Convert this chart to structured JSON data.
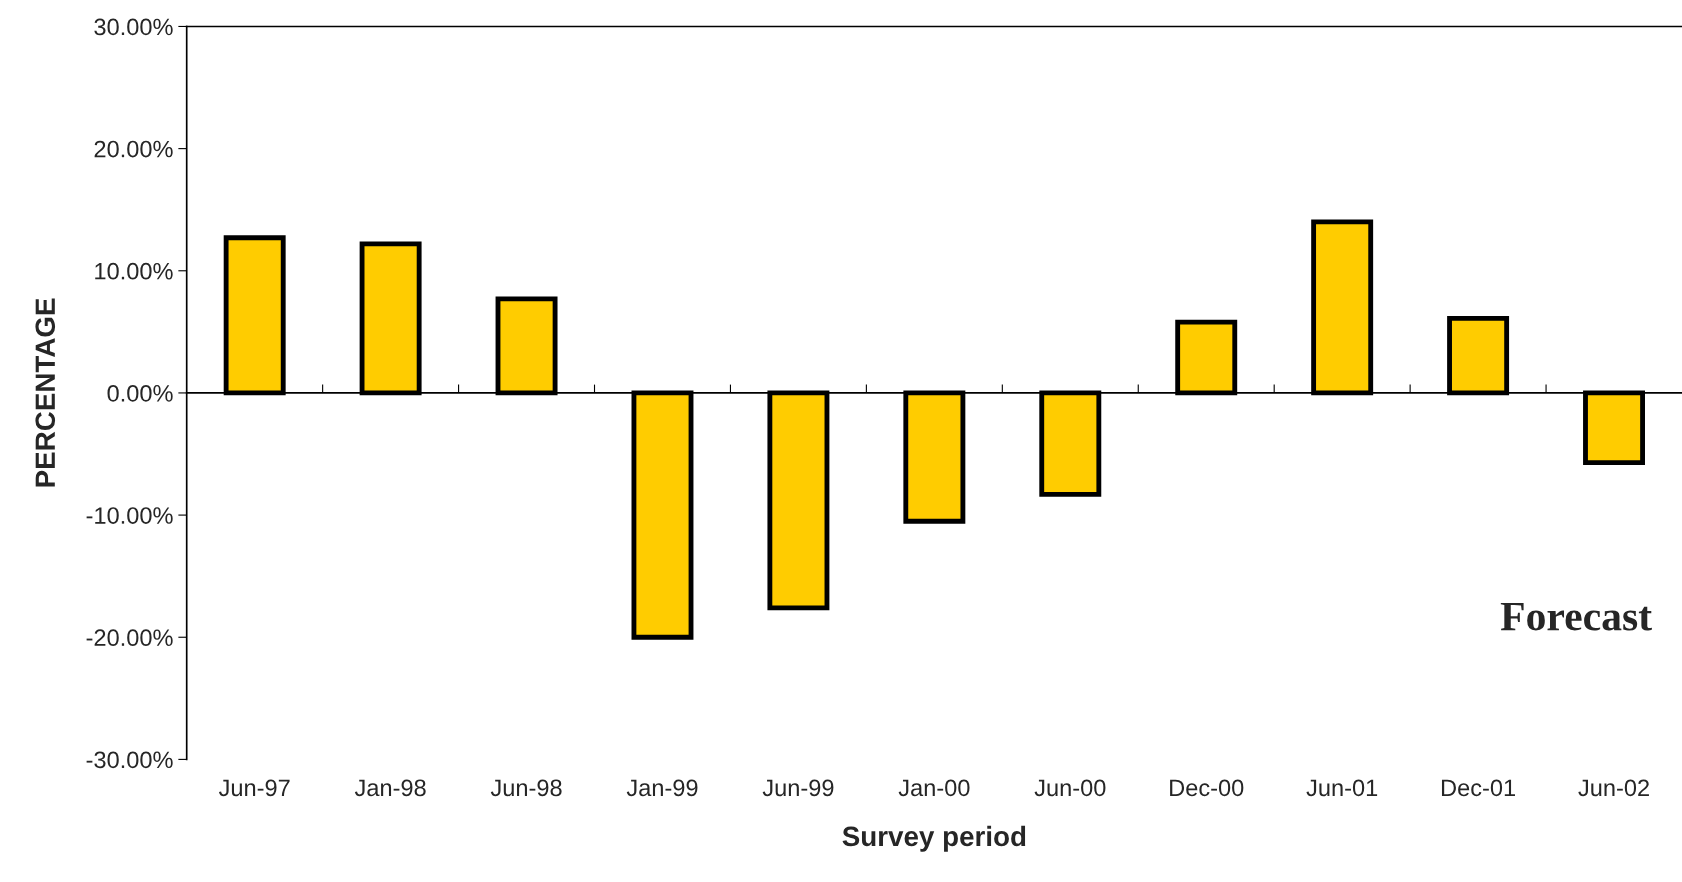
{
  "chart_data": {
    "type": "bar",
    "xlabel": "Survey period",
    "ylabel": "PERCENTAGE",
    "categories": [
      "Jun-97",
      "Jan-98",
      "Jun-98",
      "Jan-99",
      "Jun-99",
      "Jan-00",
      "Jun-00",
      "Dec-00",
      "Jun-01",
      "Dec-01",
      "Jun-02"
    ],
    "values": [
      12.7,
      12.2,
      7.7,
      -20.0,
      -17.6,
      -10.5,
      -8.3,
      5.8,
      14.0,
      6.1,
      -5.7
    ],
    "color": "#ffcc00",
    "ylim": [
      -30,
      30
    ],
    "yticks": [
      {
        "value": -30,
        "label": "-30.00%"
      },
      {
        "value": -20,
        "label": "-20.00%"
      },
      {
        "value": -10,
        "label": "-10.00%"
      },
      {
        "value": 0,
        "label": "0.00%"
      },
      {
        "value": 10,
        "label": "10.00%"
      },
      {
        "value": 20,
        "label": "20.00%"
      },
      {
        "value": 30,
        "label": "30.00%"
      }
    ],
    "annotations": [
      "Forecast"
    ]
  }
}
